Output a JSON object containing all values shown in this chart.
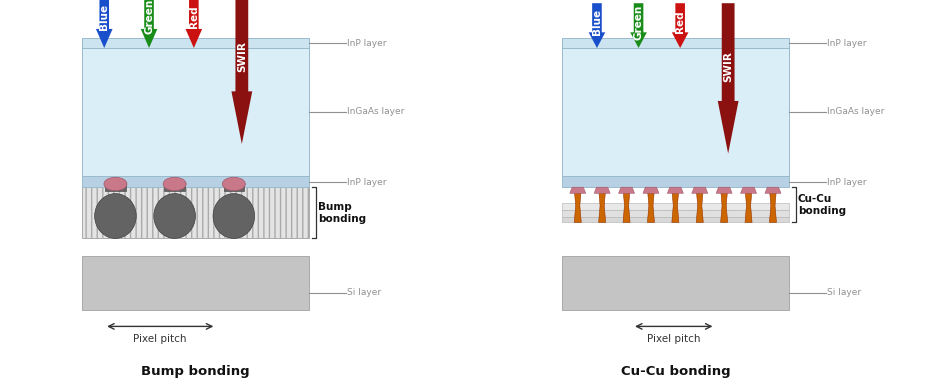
{
  "bg_color": "#ffffff",
  "light_blue_top": "#cce4f0",
  "light_blue_main": "#daeef8",
  "inp_thin_color": "#b8d0e4",
  "si_layer_color": "#c4c4c4",
  "hatch_color": "#e0e0e0",
  "bump_dark": "#606060",
  "bump_pink": "#c47888",
  "cu_orange": "#cc6600",
  "cu_pink": "#c47888",
  "arrow_blue": "#1a4fcc",
  "arrow_green": "#1a8c1a",
  "arrow_red": "#cc1111",
  "arrow_swir": "#8b1010",
  "label_gray": "#909090",
  "dark_text": "#222222",
  "title1": "Bump bonding",
  "title2": "Cu-Cu bonding",
  "bump_label": "Bump\nbonding",
  "cu_label": "Cu-Cu\nbonding",
  "pixel_pitch": "Pixel pitch"
}
